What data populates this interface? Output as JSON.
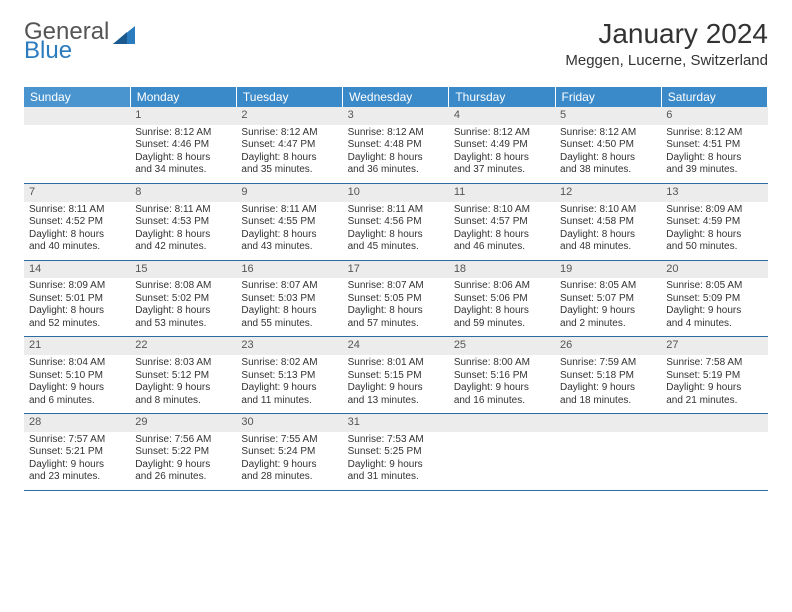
{
  "brand": {
    "part1": "General",
    "part2": "Blue"
  },
  "title": "January 2024",
  "location": "Meggen, Lucerne, Switzerland",
  "colors": {
    "header_bg": "#3a89c9",
    "header_text": "#ffffff",
    "daynum_bg": "#ececec",
    "row_divider": "#2b6ca3",
    "brand_blue": "#2b7bbf"
  },
  "day_headers": [
    "Sunday",
    "Monday",
    "Tuesday",
    "Wednesday",
    "Thursday",
    "Friday",
    "Saturday"
  ],
  "weeks": [
    [
      null,
      {
        "n": "1",
        "sr": "Sunrise: 8:12 AM",
        "ss": "Sunset: 4:46 PM",
        "d1": "Daylight: 8 hours",
        "d2": "and 34 minutes."
      },
      {
        "n": "2",
        "sr": "Sunrise: 8:12 AM",
        "ss": "Sunset: 4:47 PM",
        "d1": "Daylight: 8 hours",
        "d2": "and 35 minutes."
      },
      {
        "n": "3",
        "sr": "Sunrise: 8:12 AM",
        "ss": "Sunset: 4:48 PM",
        "d1": "Daylight: 8 hours",
        "d2": "and 36 minutes."
      },
      {
        "n": "4",
        "sr": "Sunrise: 8:12 AM",
        "ss": "Sunset: 4:49 PM",
        "d1": "Daylight: 8 hours",
        "d2": "and 37 minutes."
      },
      {
        "n": "5",
        "sr": "Sunrise: 8:12 AM",
        "ss": "Sunset: 4:50 PM",
        "d1": "Daylight: 8 hours",
        "d2": "and 38 minutes."
      },
      {
        "n": "6",
        "sr": "Sunrise: 8:12 AM",
        "ss": "Sunset: 4:51 PM",
        "d1": "Daylight: 8 hours",
        "d2": "and 39 minutes."
      }
    ],
    [
      {
        "n": "7",
        "sr": "Sunrise: 8:11 AM",
        "ss": "Sunset: 4:52 PM",
        "d1": "Daylight: 8 hours",
        "d2": "and 40 minutes."
      },
      {
        "n": "8",
        "sr": "Sunrise: 8:11 AM",
        "ss": "Sunset: 4:53 PM",
        "d1": "Daylight: 8 hours",
        "d2": "and 42 minutes."
      },
      {
        "n": "9",
        "sr": "Sunrise: 8:11 AM",
        "ss": "Sunset: 4:55 PM",
        "d1": "Daylight: 8 hours",
        "d2": "and 43 minutes."
      },
      {
        "n": "10",
        "sr": "Sunrise: 8:11 AM",
        "ss": "Sunset: 4:56 PM",
        "d1": "Daylight: 8 hours",
        "d2": "and 45 minutes."
      },
      {
        "n": "11",
        "sr": "Sunrise: 8:10 AM",
        "ss": "Sunset: 4:57 PM",
        "d1": "Daylight: 8 hours",
        "d2": "and 46 minutes."
      },
      {
        "n": "12",
        "sr": "Sunrise: 8:10 AM",
        "ss": "Sunset: 4:58 PM",
        "d1": "Daylight: 8 hours",
        "d2": "and 48 minutes."
      },
      {
        "n": "13",
        "sr": "Sunrise: 8:09 AM",
        "ss": "Sunset: 4:59 PM",
        "d1": "Daylight: 8 hours",
        "d2": "and 50 minutes."
      }
    ],
    [
      {
        "n": "14",
        "sr": "Sunrise: 8:09 AM",
        "ss": "Sunset: 5:01 PM",
        "d1": "Daylight: 8 hours",
        "d2": "and 52 minutes."
      },
      {
        "n": "15",
        "sr": "Sunrise: 8:08 AM",
        "ss": "Sunset: 5:02 PM",
        "d1": "Daylight: 8 hours",
        "d2": "and 53 minutes."
      },
      {
        "n": "16",
        "sr": "Sunrise: 8:07 AM",
        "ss": "Sunset: 5:03 PM",
        "d1": "Daylight: 8 hours",
        "d2": "and 55 minutes."
      },
      {
        "n": "17",
        "sr": "Sunrise: 8:07 AM",
        "ss": "Sunset: 5:05 PM",
        "d1": "Daylight: 8 hours",
        "d2": "and 57 minutes."
      },
      {
        "n": "18",
        "sr": "Sunrise: 8:06 AM",
        "ss": "Sunset: 5:06 PM",
        "d1": "Daylight: 8 hours",
        "d2": "and 59 minutes."
      },
      {
        "n": "19",
        "sr": "Sunrise: 8:05 AM",
        "ss": "Sunset: 5:07 PM",
        "d1": "Daylight: 9 hours",
        "d2": "and 2 minutes."
      },
      {
        "n": "20",
        "sr": "Sunrise: 8:05 AM",
        "ss": "Sunset: 5:09 PM",
        "d1": "Daylight: 9 hours",
        "d2": "and 4 minutes."
      }
    ],
    [
      {
        "n": "21",
        "sr": "Sunrise: 8:04 AM",
        "ss": "Sunset: 5:10 PM",
        "d1": "Daylight: 9 hours",
        "d2": "and 6 minutes."
      },
      {
        "n": "22",
        "sr": "Sunrise: 8:03 AM",
        "ss": "Sunset: 5:12 PM",
        "d1": "Daylight: 9 hours",
        "d2": "and 8 minutes."
      },
      {
        "n": "23",
        "sr": "Sunrise: 8:02 AM",
        "ss": "Sunset: 5:13 PM",
        "d1": "Daylight: 9 hours",
        "d2": "and 11 minutes."
      },
      {
        "n": "24",
        "sr": "Sunrise: 8:01 AM",
        "ss": "Sunset: 5:15 PM",
        "d1": "Daylight: 9 hours",
        "d2": "and 13 minutes."
      },
      {
        "n": "25",
        "sr": "Sunrise: 8:00 AM",
        "ss": "Sunset: 5:16 PM",
        "d1": "Daylight: 9 hours",
        "d2": "and 16 minutes."
      },
      {
        "n": "26",
        "sr": "Sunrise: 7:59 AM",
        "ss": "Sunset: 5:18 PM",
        "d1": "Daylight: 9 hours",
        "d2": "and 18 minutes."
      },
      {
        "n": "27",
        "sr": "Sunrise: 7:58 AM",
        "ss": "Sunset: 5:19 PM",
        "d1": "Daylight: 9 hours",
        "d2": "and 21 minutes."
      }
    ],
    [
      {
        "n": "28",
        "sr": "Sunrise: 7:57 AM",
        "ss": "Sunset: 5:21 PM",
        "d1": "Daylight: 9 hours",
        "d2": "and 23 minutes."
      },
      {
        "n": "29",
        "sr": "Sunrise: 7:56 AM",
        "ss": "Sunset: 5:22 PM",
        "d1": "Daylight: 9 hours",
        "d2": "and 26 minutes."
      },
      {
        "n": "30",
        "sr": "Sunrise: 7:55 AM",
        "ss": "Sunset: 5:24 PM",
        "d1": "Daylight: 9 hours",
        "d2": "and 28 minutes."
      },
      {
        "n": "31",
        "sr": "Sunrise: 7:53 AM",
        "ss": "Sunset: 5:25 PM",
        "d1": "Daylight: 9 hours",
        "d2": "and 31 minutes."
      },
      null,
      null,
      null
    ]
  ]
}
